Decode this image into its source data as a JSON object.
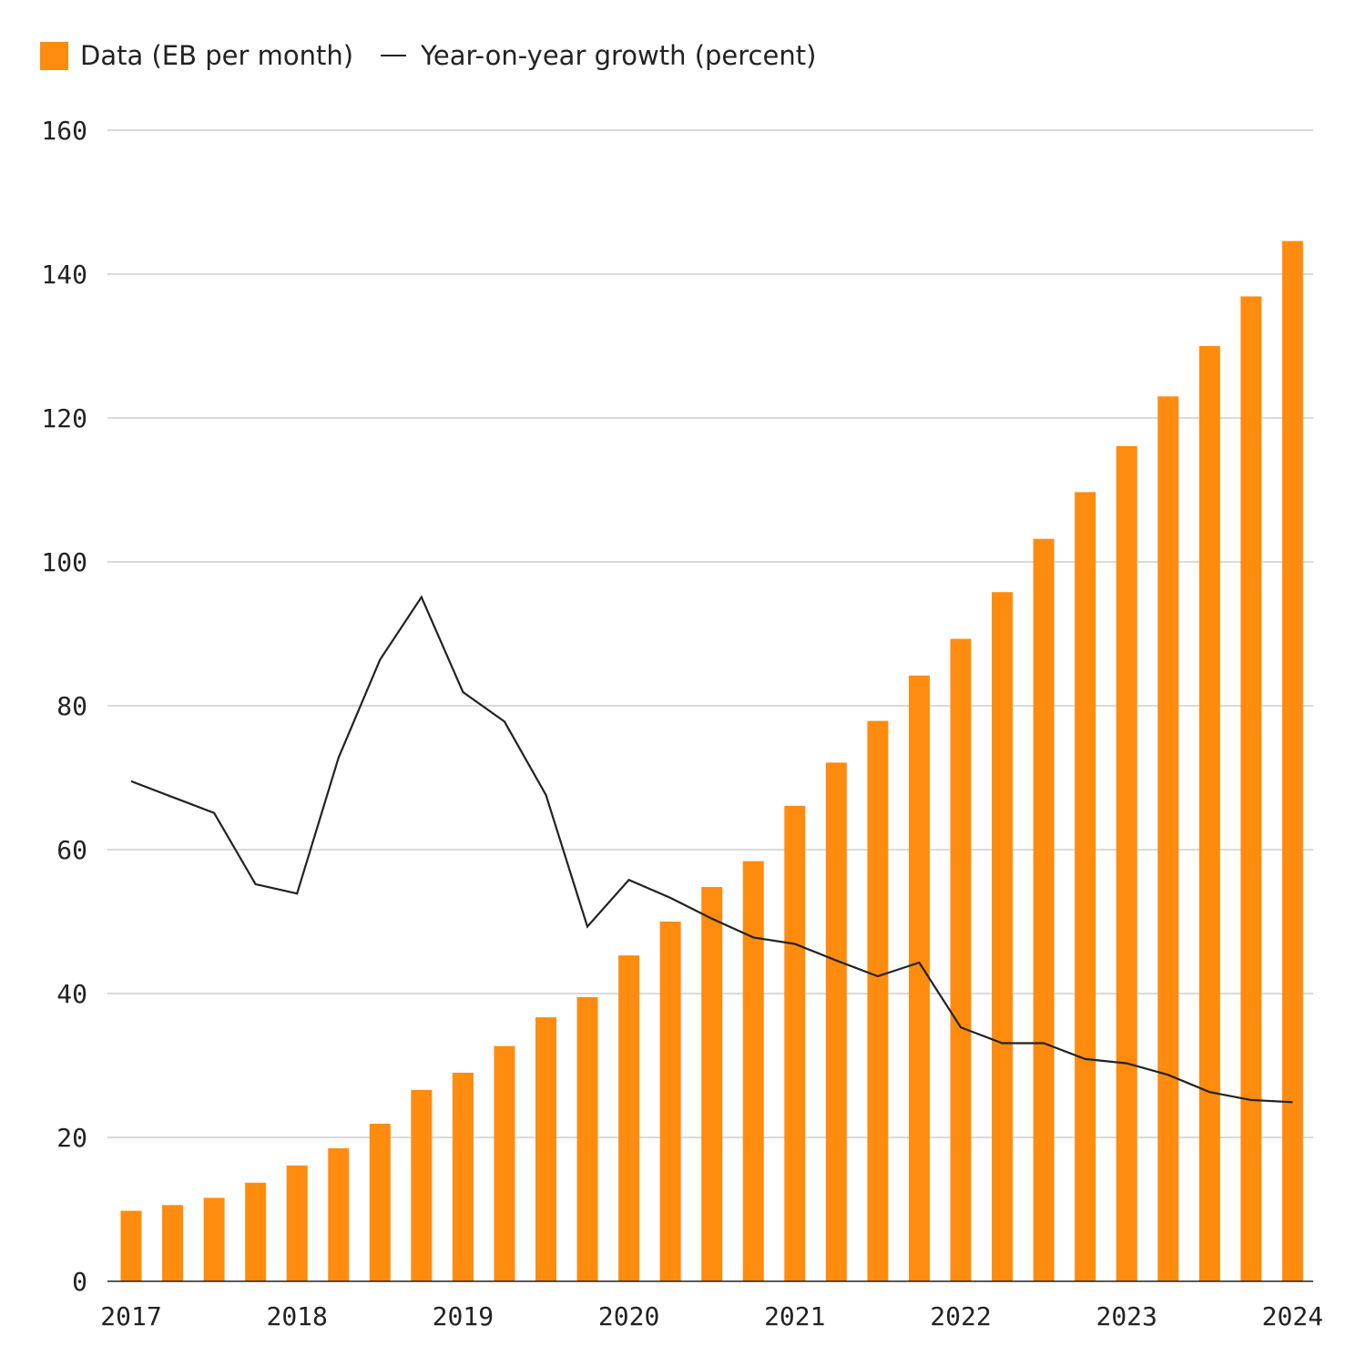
{
  "legend": {
    "bars_label": "Data (EB per month)",
    "line_label": "Year-on-year growth (percent)"
  },
  "colors": {
    "bar": "#ff8c0f",
    "line": "#222222",
    "grid": "#b4b4b4",
    "axis": "#222222"
  },
  "chart_data": {
    "type": "bar",
    "ylim": [
      0,
      160
    ],
    "yticks": [
      "0",
      "20",
      "40",
      "60",
      "80",
      "100",
      "120",
      "140",
      "160"
    ],
    "xticks": [
      "2017",
      "2018",
      "2019",
      "2020",
      "2021",
      "2022",
      "2023",
      "2024"
    ],
    "grid": true,
    "legend_position": "top-left",
    "x": [
      "2017 Q1",
      "2017 Q2",
      "2017 Q3",
      "2017 Q4",
      "2018 Q1",
      "2018 Q2",
      "2018 Q3",
      "2018 Q4",
      "2019 Q1",
      "2019 Q2",
      "2019 Q3",
      "2019 Q4",
      "2020 Q1",
      "2020 Q2",
      "2020 Q3",
      "2020 Q4",
      "2021 Q1",
      "2021 Q2",
      "2021 Q3",
      "2021 Q4",
      "2022 Q1",
      "2022 Q2",
      "2022 Q3",
      "2022 Q4",
      "2023 Q1",
      "2023 Q2",
      "2023 Q3",
      "2023 Q4",
      "2024 Q1"
    ],
    "series": [
      {
        "name": "Data (EB per month)",
        "type": "bar",
        "values": [
          9.8,
          10.6,
          11.6,
          13.7,
          16.1,
          18.5,
          21.9,
          26.6,
          29,
          32.7,
          36.7,
          39.5,
          45.3,
          50,
          54.8,
          58.4,
          66.1,
          72.1,
          77.9,
          84.2,
          89.3,
          95.8,
          103.2,
          109.7,
          116.1,
          123,
          130,
          136.9,
          144.6
        ]
      },
      {
        "name": "Year-on-year growth (percent)",
        "type": "line",
        "values": [
          69.5,
          67.3,
          65.1,
          55.2,
          53.9,
          72.8,
          86.4,
          95.1,
          81.9,
          77.8,
          67.6,
          49.3,
          55.8,
          53.3,
          50.4,
          47.8,
          46.9,
          44.6,
          42.4,
          44.3,
          35.3,
          33.1,
          33.1,
          30.9,
          30.3,
          28.7,
          26.3,
          25.2,
          24.9
        ]
      }
    ]
  }
}
